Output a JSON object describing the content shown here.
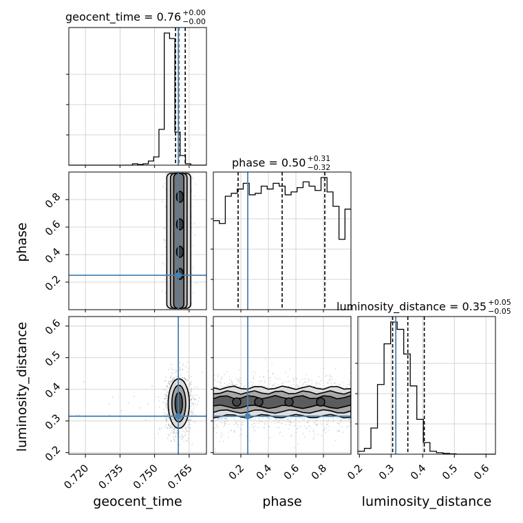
{
  "chart_data": {
    "type": "corner",
    "parameters": [
      "geocent_time",
      "phase",
      "luminosity_distance"
    ],
    "truth": {
      "geocent_time": 0.7603,
      "phase": 0.25,
      "luminosity_distance": 0.315
    },
    "truth_color": "#4682b4",
    "ranges": {
      "geocent_time": [
        0.7128,
        0.7725
      ],
      "phase": [
        0.0,
        1.0
      ],
      "luminosity_distance": [
        0.195,
        0.63
      ]
    },
    "ticks": {
      "geocent_time": [
        0.72,
        0.735,
        0.75,
        0.765
      ],
      "phase": [
        0.2,
        0.4,
        0.6,
        0.8
      ],
      "luminosity_distance": [
        0.2,
        0.3,
        0.4,
        0.5,
        0.6
      ]
    },
    "tick_labels": {
      "geocent_time": [
        "0.720",
        "0.735",
        "0.750",
        "0.765"
      ],
      "phase": [
        "0.2",
        "0.4",
        "0.6",
        "0.8"
      ],
      "luminosity_distance": [
        "0.2",
        "0.3",
        "0.4",
        "0.5",
        "0.6"
      ]
    },
    "titles": [
      {
        "param": "geocent_time",
        "text": "geocent_time = 0.76",
        "plus": "+0.00",
        "minus": "−0.00"
      },
      {
        "param": "phase",
        "text": "phase = 0.50",
        "plus": "+0.31",
        "minus": "−0.32"
      },
      {
        "param": "luminosity_distance",
        "text": "luminosity_distance = 0.35",
        "plus": "+0.05",
        "minus": "−0.05"
      }
    ],
    "axis_labels": {
      "geocent_time": "geocent_time",
      "phase": "phase",
      "luminosity_distance": "luminosity_distance"
    },
    "quantiles": {
      "geocent_time": [
        0.7591,
        0.7605,
        0.7633
      ],
      "phase": [
        0.18,
        0.5,
        0.81
      ],
      "luminosity_distance": [
        0.305,
        0.353,
        0.405
      ]
    },
    "histograms": {
      "geocent_time": {
        "edges": [
          0.7128,
          0.7151,
          0.7174,
          0.7197,
          0.722,
          0.7243,
          0.7266,
          0.7289,
          0.7312,
          0.7335,
          0.7358,
          0.7381,
          0.7404,
          0.7427,
          0.745,
          0.7473,
          0.7496,
          0.7519,
          0.7542,
          0.7565,
          0.7588,
          0.7611,
          0.7634,
          0.7657,
          0.768,
          0.7703,
          0.7725
        ],
        "counts": [
          0,
          0,
          0,
          0,
          0,
          0,
          0,
          0,
          0,
          0,
          0,
          0,
          0.01,
          0.005,
          0.01,
          0.03,
          0.06,
          0.26,
          0.96,
          0.92,
          0.24,
          0.07,
          0.01,
          0,
          0,
          0
        ]
      },
      "phase": {
        "edges": [
          0.0,
          0.0435,
          0.087,
          0.1304,
          0.1739,
          0.2174,
          0.2609,
          0.3043,
          0.3478,
          0.3913,
          0.4348,
          0.4783,
          0.5217,
          0.5652,
          0.6087,
          0.6522,
          0.6957,
          0.7391,
          0.7826,
          0.8261,
          0.8696,
          0.913,
          0.9565,
          1.0
        ],
        "counts": [
          0.62,
          0.6,
          0.79,
          0.81,
          0.84,
          0.88,
          0.8,
          0.81,
          0.86,
          0.84,
          0.88,
          0.86,
          0.8,
          0.82,
          0.85,
          0.89,
          0.86,
          0.83,
          0.92,
          0.82,
          0.72,
          0.49,
          0.7
        ]
      },
      "luminosity_distance": {
        "edges": [
          0.195,
          0.2157,
          0.2364,
          0.2571,
          0.2779,
          0.2986,
          0.3193,
          0.34,
          0.3607,
          0.3814,
          0.4021,
          0.4229,
          0.4436,
          0.4643,
          0.485,
          0.5057,
          0.5264,
          0.5471,
          0.5679,
          0.5886,
          0.6093,
          0.63
        ],
        "counts": [
          0.02,
          0.04,
          0.18,
          0.48,
          0.76,
          0.91,
          0.86,
          0.69,
          0.47,
          0.24,
          0.08,
          0.02,
          0.01,
          0.005,
          0.002,
          0,
          0,
          0,
          0,
          0,
          0
        ]
      }
    },
    "density_2d": {
      "phase_vs_geocent_time": {
        "center": [
          0.7605,
          0.5
        ],
        "contour_half_widths": [
          0.0022,
          0.0036,
          0.0052
        ],
        "scatter_x_sd": 0.0025
      },
      "luminosity_distance_vs_geocent_time": {
        "center": [
          0.7605,
          0.355
        ],
        "contour_radii_x": [
          0.0016,
          0.003,
          0.0046
        ],
        "contour_radii_y": [
          0.035,
          0.058,
          0.078
        ]
      },
      "luminosity_distance_vs_phase": {
        "center_y": 0.355,
        "contour_half_heights": [
          0.02,
          0.035,
          0.05
        ]
      }
    },
    "grid": true
  }
}
